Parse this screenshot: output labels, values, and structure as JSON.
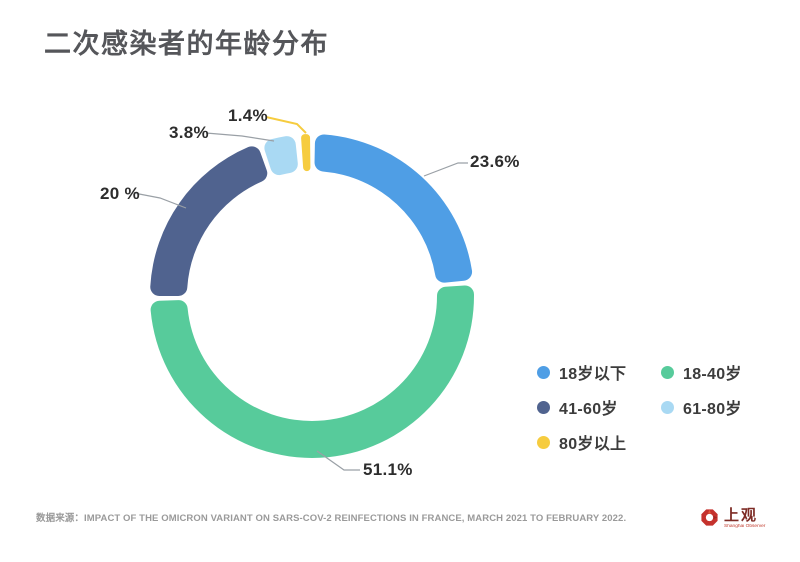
{
  "chart_data": {
    "type": "pie",
    "subtype": "donut",
    "title": "二次感染者的年龄分布",
    "unit": "percent",
    "categories": [
      "18岁以下",
      "18-40岁",
      "41-60岁",
      "61-80岁",
      "80岁以上"
    ],
    "values": [
      23.6,
      51.1,
      20,
      3.8,
      1.4
    ],
    "segments": [
      {
        "label": "18岁以下",
        "value": 23.6,
        "display_value": "23.6%",
        "color": "#4F9EE5"
      },
      {
        "label": "18-40岁",
        "value": 51.1,
        "display_value": "51.1%",
        "color": "#57CB9B"
      },
      {
        "label": "41-60岁",
        "value": 20,
        "display_value": "20 %",
        "color": "#50638F"
      },
      {
        "label": "61-80岁",
        "value": 3.8,
        "display_value": "3.8%",
        "color": "#A9D9F3"
      },
      {
        "label": "80岁以上",
        "value": 1.4,
        "display_value": "1.4%",
        "color": "#F6CC3F"
      }
    ],
    "legend_position": "right-middle",
    "grid": false
  },
  "source": {
    "text": "数据来源：IMPACT OF THE OMICRON VARIANT ON SARS-COV-2 REINFECTIONS IN FRANCE, MARCH 2021 TO FEBRUARY 2022."
  },
  "logo": {
    "name": "上观",
    "subtitle": "Shanghai Observer"
  },
  "colors": {
    "title_text": "#55565a",
    "leader_line": "#9aa0a6",
    "logo_red": "#c5322d"
  }
}
